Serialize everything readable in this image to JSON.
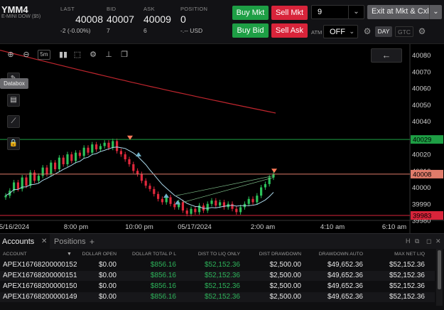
{
  "instrument": {
    "symbol": "YMM4",
    "name": "E-MINI DOW ($5)"
  },
  "quote": {
    "last_label": "LAST",
    "last": "40008",
    "change": "-2 (-0.00%)",
    "bid_label": "BID",
    "bid": "40007",
    "bid_size": "7",
    "ask_label": "ASK",
    "ask": "40009",
    "ask_size": "6",
    "position_label": "POSITION",
    "position": "0",
    "position_pl": "-.-- USD"
  },
  "order_buttons": {
    "buy_mkt": "Buy Mkt",
    "sell_mkt": "Sell Mkt",
    "buy_bid": "Buy Bid",
    "sell_ask": "Sell Ask"
  },
  "quantity": {
    "value": "9"
  },
  "exit_button": "Exit at Mkt & Cxl",
  "atm": {
    "label": "ATM",
    "value": "OFF"
  },
  "tif": {
    "day": "DAY",
    "gtc": "GTC"
  },
  "chart_toolbar": {
    "interval": "5m"
  },
  "databox_tooltip": "Databox",
  "colors": {
    "green": "#1e9f45",
    "red": "#d8243a",
    "candle_up": "#2cc25a",
    "candle_down": "#e0283c",
    "ma_slow": "#c0262e",
    "ma_fast": "#a9d6e8"
  },
  "chart_data": {
    "type": "candlestick",
    "symbol": "YMM4",
    "interval": "5m",
    "price_axis_ticks": [
      "40080",
      "40070",
      "40060",
      "40050",
      "40040",
      "40030",
      "40020",
      "40010",
      "40000",
      "39990",
      "39980"
    ],
    "time_axis_labels": [
      "5/16/2024",
      "8:00 pm",
      "10:00 pm",
      "05/17/2024",
      "2:00 am",
      "4:10 am",
      "6:10 am"
    ],
    "ylim": [
      39980,
      40085
    ],
    "horizontal_lines": [
      {
        "price": 40029,
        "label": "40029",
        "color": "#1e9f45"
      },
      {
        "price": 40008,
        "label": "40008",
        "color": "#e07b6a"
      },
      {
        "price": 39983,
        "label": "39983",
        "color": "#d8243a"
      }
    ],
    "close_path": [
      39995,
      39998,
      40003,
      39999,
      40006,
      40001,
      40009,
      40004,
      40007,
      40012,
      40008,
      40015,
      40011,
      40018,
      40014,
      40020,
      40016,
      40021,
      40019,
      40024,
      40021,
      40026,
      40023,
      40025,
      40027,
      40024,
      40028,
      40022,
      40020,
      40017,
      40014,
      40010,
      40008,
      40004,
      40001,
      39999,
      39996,
      39993,
      39991,
      39994,
      39990,
      39988,
      39991,
      39986,
      39984,
      39987,
      39985,
      39989,
      39986,
      39990,
      39992,
      39989,
      39991,
      39988,
      39990,
      39987,
      39985,
      39988,
      39990,
      39993,
      39991,
      39995,
      40000,
      40002,
      40006,
      40008
    ]
  },
  "accounts_panel": {
    "tabs": {
      "accounts": "Accounts",
      "positions": "Positions"
    },
    "columns": [
      "ACCOUNT",
      "DOLLAR OPEN",
      "DOLLAR TOTAL P L",
      "DIST TO LIQ ONLY",
      "DIST DRAWDOWN",
      "DRAWDOWN AUTO",
      "MAX NET LIQ"
    ],
    "rows": [
      {
        "account": "APEX16768200000152",
        "open": "$0.00",
        "total_pl": "$856.16",
        "dist_liq": "$52,152.36",
        "dist_dd": "$2,500.00",
        "dd_auto": "$49,652.36",
        "max_liq": "$52,152.36"
      },
      {
        "account": "APEX16768200000151",
        "open": "$0.00",
        "total_pl": "$856.16",
        "dist_liq": "$52,152.36",
        "dist_dd": "$2,500.00",
        "dd_auto": "$49,652.36",
        "max_liq": "$52,152.36"
      },
      {
        "account": "APEX16768200000150",
        "open": "$0.00",
        "total_pl": "$856.16",
        "dist_liq": "$52,152.36",
        "dist_dd": "$2,500.00",
        "dd_auto": "$49,652.36",
        "max_liq": "$52,152.36"
      },
      {
        "account": "APEX16768200000149",
        "open": "$0.00",
        "total_pl": "$856.16",
        "dist_liq": "$52,152.36",
        "dist_dd": "$2,500.00",
        "dd_auto": "$49,652.36",
        "max_liq": "$52,152.36"
      }
    ]
  }
}
